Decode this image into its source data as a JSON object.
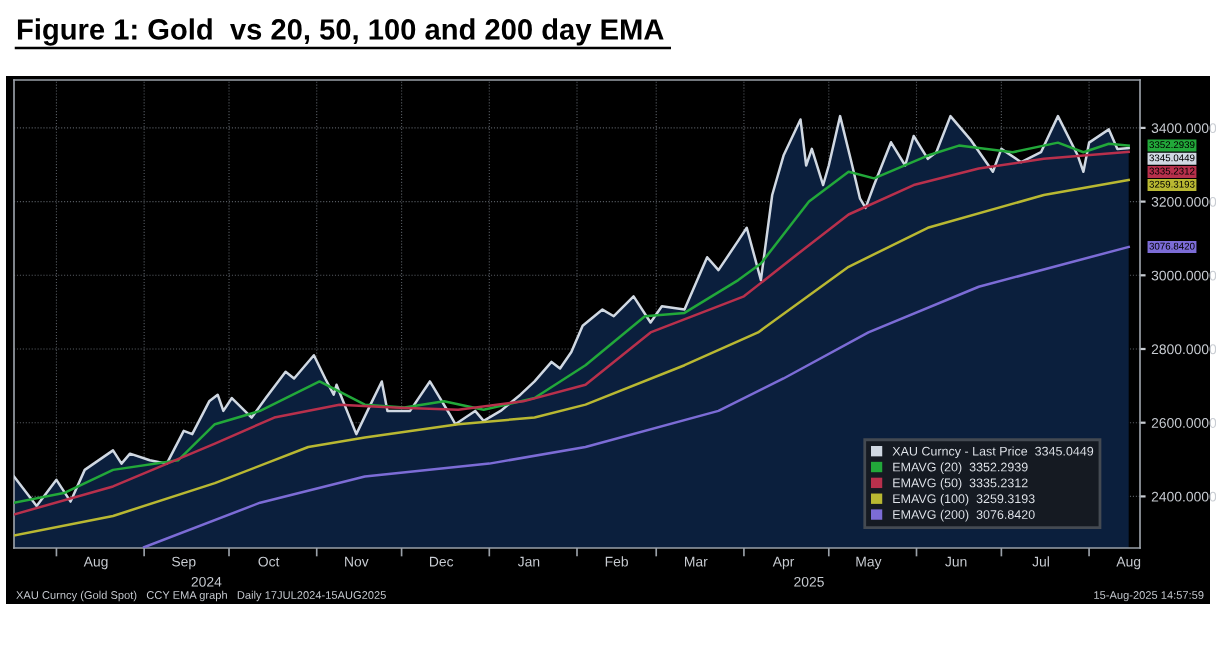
{
  "chart_data": {
    "type": "line",
    "title": "Figure 1: Gold  vs 20, 50, 100 and 200 day EMA",
    "series": [
      {
        "name": "XAU Curncy - Last Price  3345.0449",
        "type": "area",
        "color": "#d0d8e2",
        "x": [
          "2024-07-17",
          "2024-07-25",
          "2024-08-01",
          "2024-08-06",
          "2024-08-11",
          "2024-08-21",
          "2024-08-24",
          "2024-08-27",
          "2024-09-03",
          "2024-09-09",
          "2024-09-15",
          "2024-09-18",
          "2024-09-24",
          "2024-09-27",
          "2024-09-29",
          "2024-10-02",
          "2024-10-09",
          "2024-10-14",
          "2024-10-21",
          "2024-10-24",
          "2024-10-31",
          "2024-11-04",
          "2024-11-07",
          "2024-11-08",
          "2024-11-15",
          "2024-11-20",
          "2024-11-24",
          "2024-11-26",
          "2024-12-04",
          "2024-12-11",
          "2024-12-18",
          "2024-12-20",
          "2024-12-27",
          "2024-12-30",
          "2025-01-05",
          "2025-01-12",
          "2025-01-17",
          "2025-01-23",
          "2025-01-26",
          "2025-01-30",
          "2025-02-03",
          "2025-02-10",
          "2025-02-14",
          "2025-02-21",
          "2025-02-27",
          "2025-03-03",
          "2025-03-11",
          "2025-03-17",
          "2025-03-19",
          "2025-03-23",
          "2025-03-30",
          "2025-04-02",
          "2025-04-07",
          "2025-04-11",
          "2025-04-15",
          "2025-04-21",
          "2025-04-23",
          "2025-04-25",
          "2025-04-29",
          "2025-05-01",
          "2025-05-05",
          "2025-05-09",
          "2025-05-12",
          "2025-05-14",
          "2025-05-17",
          "2025-05-23",
          "2025-05-28",
          "2025-05-31",
          "2025-06-05",
          "2025-06-08",
          "2025-06-13",
          "2025-06-20",
          "2025-06-28",
          "2025-07-01",
          "2025-07-08",
          "2025-07-15",
          "2025-07-21",
          "2025-07-28",
          "2025-07-30",
          "2025-08-01",
          "2025-08-08",
          "2025-08-11",
          "2025-08-15"
        ],
        "values": [
          2454,
          2374,
          2445,
          2386,
          2472,
          2525,
          2489,
          2516,
          2498,
          2489,
          2578,
          2569,
          2658,
          2676,
          2632,
          2667,
          2614,
          2667,
          2738,
          2720,
          2783,
          2720,
          2676,
          2703,
          2569,
          2649,
          2712,
          2632,
          2632,
          2712,
          2623,
          2596,
          2632,
          2605,
          2632,
          2676,
          2712,
          2765,
          2747,
          2792,
          2863,
          2907,
          2889,
          2943,
          2872,
          2916,
          2907,
          3014,
          3049,
          3014,
          3094,
          3129,
          2987,
          3218,
          3325,
          3423,
          3298,
          3343,
          3245,
          3298,
          3432,
          3307,
          3209,
          3183,
          3245,
          3361,
          3298,
          3378,
          3316,
          3334,
          3432,
          3369,
          3281,
          3343,
          3307,
          3334,
          3432,
          3325,
          3281,
          3360,
          3396,
          3343,
          3345
        ]
      },
      {
        "name": "EMAVG (20)  3352.2939",
        "color": "#22a83a",
        "x": [
          "2024-07-17",
          "2024-08-04",
          "2024-08-21",
          "2024-09-13",
          "2024-09-26",
          "2024-10-12",
          "2024-11-02",
          "2024-11-18",
          "2024-12-02",
          "2024-12-16",
          "2024-12-30",
          "2025-01-17",
          "2025-02-04",
          "2025-02-25",
          "2025-03-11",
          "2025-03-30",
          "2025-04-07",
          "2025-04-24",
          "2025-05-08",
          "2025-05-17",
          "2025-06-05",
          "2025-06-16",
          "2025-07-05",
          "2025-07-21",
          "2025-07-30",
          "2025-08-08",
          "2025-08-15"
        ],
        "values": [
          2383,
          2410,
          2472,
          2498,
          2596,
          2632,
          2712,
          2649,
          2641,
          2658,
          2635,
          2667,
          2756,
          2889,
          2898,
          2987,
          3032,
          3200,
          3281,
          3263,
          3325,
          3352,
          3334,
          3360,
          3334,
          3357,
          3352
        ]
      },
      {
        "name": "EMAVG (50)  3335.2312",
        "color": "#b8304c",
        "x": [
          "2024-07-17",
          "2024-08-21",
          "2024-09-26",
          "2024-10-17",
          "2024-11-09",
          "2024-11-28",
          "2024-12-21",
          "2025-01-13",
          "2025-02-04",
          "2025-02-27",
          "2025-04-01",
          "2025-04-20",
          "2025-05-08",
          "2025-05-31",
          "2025-06-23",
          "2025-07-16",
          "2025-08-15"
        ],
        "values": [
          2351,
          2427,
          2543,
          2614,
          2649,
          2641,
          2635,
          2658,
          2703,
          2845,
          2943,
          3058,
          3165,
          3245,
          3290,
          3316,
          3335
        ]
      },
      {
        "name": "EMAVG (100)  3259.3193",
        "color": "#b9b832",
        "x": [
          "2024-07-17",
          "2024-08-21",
          "2024-09-26",
          "2024-10-29",
          "2024-11-18",
          "2024-12-21",
          "2025-01-17",
          "2025-02-04",
          "2025-03-11",
          "2025-04-06",
          "2025-05-08",
          "2025-06-05",
          "2025-07-16",
          "2025-08-15"
        ],
        "values": [
          2294,
          2347,
          2436,
          2534,
          2560,
          2596,
          2614,
          2649,
          2756,
          2845,
          3023,
          3129,
          3218,
          3259
        ]
      },
      {
        "name": "EMAVG (200)  3076.8420",
        "color": "#7c6cd6",
        "x": [
          "2024-09-01",
          "2024-10-12",
          "2024-11-18",
          "2025-01-01",
          "2025-02-04",
          "2025-03-23",
          "2025-04-15",
          "2025-05-15",
          "2025-06-23",
          "2025-08-15"
        ],
        "values": [
          2262,
          2383,
          2454,
          2489,
          2534,
          2632,
          2720,
          2845,
          2969,
          3077
        ]
      }
    ],
    "xlim": [
      "2024-07-17",
      "2025-08-19"
    ],
    "xticks": [
      {
        "value": "2024-08-01",
        "label": null
      },
      {
        "value": "2024-09-01",
        "label": null
      },
      {
        "value": "2024-10-01",
        "label": null
      },
      {
        "value": "2024-11-01",
        "label": null
      },
      {
        "value": "2024-12-01",
        "label": null
      },
      {
        "value": "2025-01-01",
        "label": null
      },
      {
        "value": "2025-02-01",
        "label": null
      },
      {
        "value": "2025-03-01",
        "label": null
      },
      {
        "value": "2025-04-01",
        "label": null
      },
      {
        "value": "2025-05-01",
        "label": null
      },
      {
        "value": "2025-06-01",
        "label": null
      },
      {
        "value": "2025-07-01",
        "label": null
      },
      {
        "value": "2025-08-01",
        "label": null
      },
      {
        "value": "2024-08-15",
        "label": "Aug"
      },
      {
        "value": "2024-09-15",
        "label": "Sep"
      },
      {
        "value": "2024-10-15",
        "label": "Oct"
      },
      {
        "value": "2024-11-15",
        "label": "Nov"
      },
      {
        "value": "2024-12-15",
        "label": "Dec"
      },
      {
        "value": "2025-01-15",
        "label": "Jan"
      },
      {
        "value": "2025-02-15",
        "label": "Feb"
      },
      {
        "value": "2025-03-15",
        "label": "Mar"
      },
      {
        "value": "2025-04-15",
        "label": "Apr"
      },
      {
        "value": "2025-05-15",
        "label": "May"
      },
      {
        "value": "2025-06-15",
        "label": "Jun"
      },
      {
        "value": "2025-07-15",
        "label": "Jul"
      },
      {
        "value": "2025-08-15",
        "label": "Aug"
      }
    ],
    "x2lim": [
      "2024-07-17",
      "2025-08-19"
    ],
    "x2ticks": [
      {
        "value": "2024-09-23",
        "label": "2024"
      },
      {
        "value": "2025-04-24",
        "label": "2025"
      }
    ],
    "ylim": [
      2260,
      3530
    ],
    "yticks": [
      {
        "value": 2400,
        "label": "2400.0000"
      },
      {
        "value": 2600,
        "label": "2600.0000"
      },
      {
        "value": 2800,
        "label": "2800.0000"
      },
      {
        "value": 3000,
        "label": "3000.0000"
      },
      {
        "value": 3200,
        "label": "3200.0000"
      },
      {
        "value": 3400,
        "label": "3400.0000"
      }
    ],
    "grid": true,
    "legend": "bottom right",
    "annotations": [
      {
        "text": "3345.0449",
        "x": "2025-08-15",
        "y": 3345.0449
      },
      {
        "text": "3352.2939",
        "x": "2025-08-15",
        "y": 3352.2939
      },
      {
        "text": "3335.2312",
        "x": "2025-08-15",
        "y": 3335.2312
      },
      {
        "text": "3259.3193",
        "x": "2025-08-15",
        "y": 3259.3193
      },
      {
        "text": "3076.8420",
        "x": "2025-08-15",
        "y": 3076.842
      },
      "XAU Curncy (Gold Spot)   CCY EMA graph   Daily 17JUL2024-15AUG2025",
      "15-Aug-2025 14:57:59"
    ]
  }
}
